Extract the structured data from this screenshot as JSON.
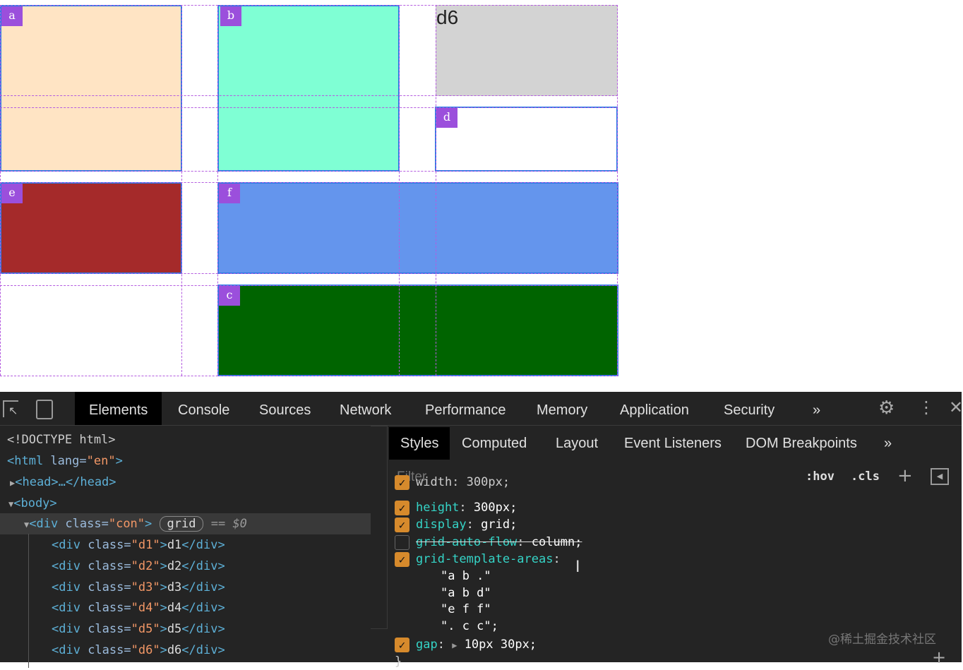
{
  "grid_items": [
    {
      "label": "a",
      "color": "#ffe4c4"
    },
    {
      "label": "b",
      "color": "#7fffd4"
    },
    {
      "label": "d6",
      "color": "#d3d3d3"
    },
    {
      "label": "d",
      "color": "#ffffff"
    },
    {
      "label": "e",
      "color": "#a52a2a"
    },
    {
      "label": "f",
      "color": "#6495ed"
    },
    {
      "label": "c",
      "color": "#006400"
    }
  ],
  "devtools": {
    "tabs": [
      "Elements",
      "Console",
      "Sources",
      "Network",
      "Performance",
      "Memory",
      "Application",
      "Security"
    ],
    "more": "»",
    "styles_tabs": [
      "Styles",
      "Computed",
      "Layout",
      "Event Listeners",
      "DOM Breakpoints"
    ],
    "filter_placeholder": "Filter",
    "hov": ":hov",
    "cls": ".cls",
    "dom": {
      "doctype": "<!DOCTYPE html>",
      "html_open": "<html",
      "lang_attr": " lang=",
      "lang_val": "\"en\"",
      "gt": ">",
      "head": "<head>…</head>",
      "body": "<body>",
      "div_con_open": "<div",
      "class_attr": " class=",
      "con_val": "\"con\"",
      "grid_badge": "grid",
      "selected_marker": "== $0",
      "children": [
        "d1",
        "d2",
        "d3",
        "d4",
        "d5",
        "d6"
      ]
    },
    "css": {
      "cut_line": "width: 300px;",
      "rules": [
        {
          "prop": "height",
          "value": "300px;",
          "checked": true
        },
        {
          "prop": "display",
          "value": "grid;",
          "checked": true
        },
        {
          "prop": "grid-auto-flow",
          "value": "column;",
          "checked": false
        },
        {
          "prop": "grid-template-areas",
          "value": "",
          "checked": true
        }
      ],
      "areas": [
        "\"a b .\"",
        "\"a b d\"",
        "\"e f f\"",
        "\". c c\";"
      ],
      "gap": {
        "prop": "gap",
        "value": "10px 30px;"
      }
    },
    "watermark": "@稀土掘金技术社区"
  }
}
